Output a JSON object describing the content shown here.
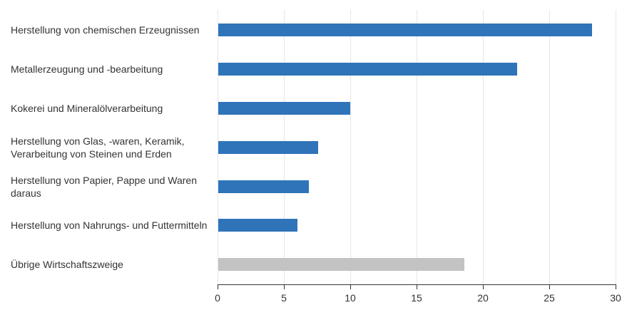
{
  "chart_data": {
    "type": "bar",
    "orientation": "horizontal",
    "title": "",
    "xlabel": "",
    "ylabel": "",
    "xlim": [
      0,
      30
    ],
    "x_ticks": [
      "0",
      "5",
      "10",
      "15",
      "20",
      "25",
      "30"
    ],
    "grid": true,
    "legend": null,
    "categories": [
      "Herstellung von chemischen Erzeugnissen",
      "Metallerzeugung und -bearbeitung",
      "Kokerei und Mineralölverarbeitung",
      "Herstellung von Glas, -waren, Keramik, Verarbeitung von Steinen und Erden",
      "Herstellung von Papier, Pappe und Waren daraus",
      "Herstellung von Nahrungs- und Futtermitteln",
      "Übrige Wirtschaftszweige"
    ],
    "values": [
      28.2,
      22.6,
      10.0,
      7.6,
      6.9,
      6.0,
      18.6
    ],
    "colors": [
      "#2f74b9",
      "#2f74b9",
      "#2f74b9",
      "#2f74b9",
      "#2f74b9",
      "#2f74b9",
      "#c3c3c3"
    ]
  },
  "labels": [
    "Herstellung von chemischen Erzeugnissen",
    "Metallerzeugung und -bearbeitung",
    "Kokerei und Mineralölverarbeitung",
    "Herstellung von Glas, -waren, Keramik, Verarbeitung von Steinen und Erden",
    "Herstellung von Papier, Pappe und Waren daraus",
    "Herstellung von Nahrungs- und Futtermitteln",
    "Übrige Wirtschaftszweige"
  ],
  "ticks": [
    "0",
    "5",
    "10",
    "15",
    "20",
    "25",
    "30"
  ]
}
